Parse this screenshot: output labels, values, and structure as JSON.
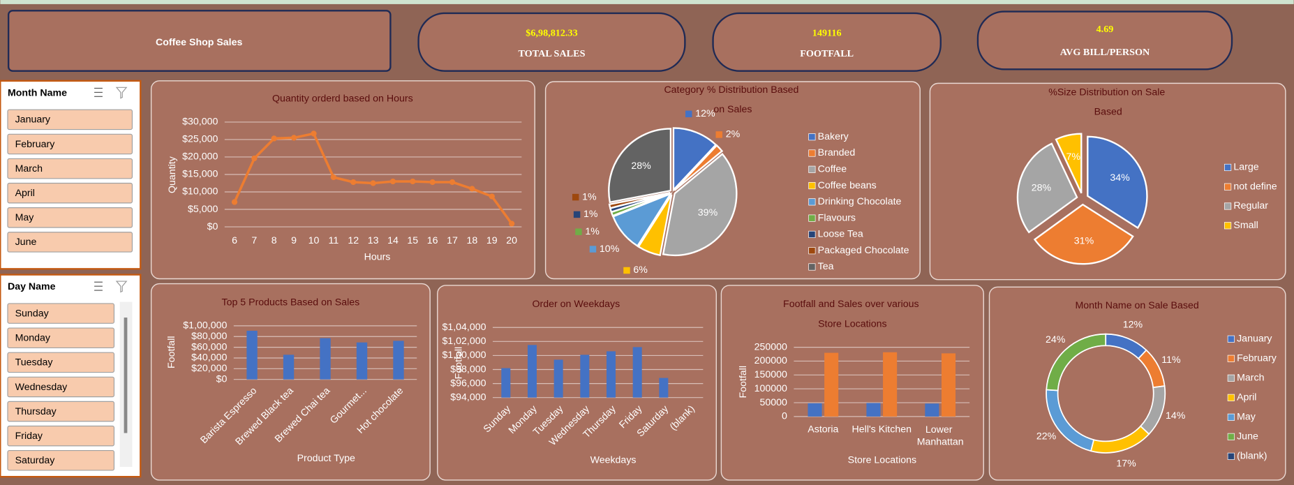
{
  "title": "Coffee Shop Sales",
  "kpis": [
    {
      "value": "$6,98,812.33",
      "label": "TOTAL SALES"
    },
    {
      "value": "149116",
      "label": "FOOTFALL"
    },
    {
      "value": "4.69",
      "label": "AVG BILL/PERSON"
    }
  ],
  "slicers": [
    {
      "title": "Month Name",
      "items": [
        "January",
        "February",
        "March",
        "April",
        "May",
        "June"
      ]
    },
    {
      "title": "Day Name",
      "items": [
        "Sunday",
        "Monday",
        "Tuesday",
        "Wednesday",
        "Thursday",
        "Friday",
        "Saturday"
      ]
    }
  ],
  "chart_data": [
    {
      "type": "line",
      "title": "Quantity orderd based on Hours",
      "x_label": "Hours",
      "y_label": "Quantity",
      "x": [
        6,
        7,
        8,
        9,
        10,
        11,
        12,
        13,
        14,
        15,
        16,
        17,
        18,
        19,
        20
      ],
      "values": [
        7100,
        19600,
        25300,
        25500,
        26700,
        14200,
        12800,
        12500,
        13000,
        13000,
        12800,
        12800,
        10900,
        8700,
        900
      ],
      "color": "#ed7d31",
      "xlim": [
        5.5,
        20.5
      ],
      "xticks": [
        6,
        7,
        8,
        9,
        10,
        11,
        12,
        13,
        14,
        15,
        16,
        17,
        18,
        19,
        20
      ],
      "ylim": [
        0,
        30000
      ],
      "yticks": [
        {
          "value": 0,
          "label": "$0"
        },
        {
          "value": 5000,
          "label": "$5,000"
        },
        {
          "value": 10000,
          "label": "$10,000"
        },
        {
          "value": 15000,
          "label": "$15,000"
        },
        {
          "value": 20000,
          "label": "$20,000"
        },
        {
          "value": 25000,
          "label": "$25,000"
        },
        {
          "value": 30000,
          "label": "$30,000"
        }
      ],
      "grid": true
    },
    {
      "type": "pie",
      "title": "Category % Distribution Based on Sales",
      "categories": [
        "Bakery",
        "Branded",
        "Coffee",
        "Coffee beans",
        "Drinking Chocolate",
        "Flavours",
        "Loose Tea",
        "Packaged Chocolate",
        "Tea"
      ],
      "values": [
        12,
        2,
        39,
        6,
        10,
        1,
        1,
        1,
        28
      ],
      "value_labels": [
        "12%",
        "2%",
        "39%",
        "6%",
        "10%",
        "1%",
        "1%",
        "1%",
        "28%"
      ],
      "colors": [
        "#4472c4",
        "#ed7d31",
        "#a5a5a5",
        "#ffc000",
        "#5b9bd5",
        "#70ad47",
        "#264478",
        "#9e480e",
        "#636363"
      ],
      "legend": "right"
    },
    {
      "type": "pie",
      "title": "%Size Distribution on Sale Based",
      "categories": [
        "Large",
        "not define",
        "Regular",
        "Small"
      ],
      "values": [
        34,
        31,
        28,
        7
      ],
      "value_labels": [
        "34%",
        "31%",
        "28%",
        "7%"
      ],
      "colors": [
        "#4472c4",
        "#ed7d31",
        "#a5a5a5",
        "#ffc000"
      ],
      "legend": "right"
    },
    {
      "type": "bar",
      "title": "Top 5 Products Based on Sales",
      "x_label": "Product Type",
      "y_label": "Footfall",
      "categories": [
        "Barista Espresso",
        "Brewed Black tea",
        "Brewed Chai tea",
        "Gourmet...",
        "Hot chocolate"
      ],
      "values": [
        90800,
        46000,
        77000,
        69000,
        72000
      ],
      "color": "#4472c4",
      "ylim": [
        0,
        100000
      ],
      "yticks": [
        {
          "value": 0,
          "label": "$0"
        },
        {
          "value": 20000,
          "label": "$20,000"
        },
        {
          "value": 40000,
          "label": "$40,000"
        },
        {
          "value": 60000,
          "label": "$60,000"
        },
        {
          "value": 80000,
          "label": "$80,000"
        },
        {
          "value": 100000,
          "label": "$1,00,000"
        }
      ],
      "grid": true
    },
    {
      "type": "bar",
      "title": "Order on Weekdays",
      "x_label": "Weekdays",
      "y_label": "Footfall",
      "categories": [
        "Sunday",
        "Monday",
        "Tuesday",
        "Wednesday",
        "Thursday",
        "Friday",
        "Saturday",
        "(blank)"
      ],
      "values": [
        98200,
        101500,
        99400,
        100100,
        100600,
        101200,
        96800,
        null
      ],
      "color": "#4472c4",
      "ylim": [
        94000,
        104000
      ],
      "yticks": [
        {
          "value": 94000,
          "label": "$94,000"
        },
        {
          "value": 96000,
          "label": "$96,000"
        },
        {
          "value": 98000,
          "label": "$98,000"
        },
        {
          "value": 100000,
          "label": "$1,00,000"
        },
        {
          "value": 102000,
          "label": "$1,02,000"
        },
        {
          "value": 104000,
          "label": "$1,04,000"
        }
      ],
      "grid": true
    },
    {
      "type": "bar",
      "title": "Footfall and Sales over various Store Locations",
      "x_label": "Store Locations",
      "y_label": "Footfall",
      "categories": [
        "Astoria",
        "Hell's Kitchen",
        "Lower Manhattan"
      ],
      "series": [
        {
          "color": "#4472c4",
          "values": [
            48000,
            49000,
            47000
          ]
        },
        {
          "color": "#ed7d31",
          "values": [
            230000,
            232000,
            228000
          ]
        }
      ],
      "ylim": [
        0,
        250000
      ],
      "yticks": [
        0,
        50000,
        100000,
        150000,
        200000,
        250000
      ],
      "grid": true
    },
    {
      "type": "donut",
      "title": "Month Name on Sale Based",
      "categories": [
        "January",
        "February",
        "March",
        "April",
        "May",
        "June",
        "(blank)"
      ],
      "values": [
        12,
        11,
        14,
        17,
        22,
        24,
        null
      ],
      "value_labels": [
        "12%",
        "11%",
        "14%",
        "17%",
        "22%",
        "24%",
        null
      ],
      "colors": [
        "#4472c4",
        "#ed7d31",
        "#a5a5a5",
        "#ffc000",
        "#5b9bd5",
        "#70ad47",
        "#264478"
      ],
      "legend": "right"
    }
  ]
}
